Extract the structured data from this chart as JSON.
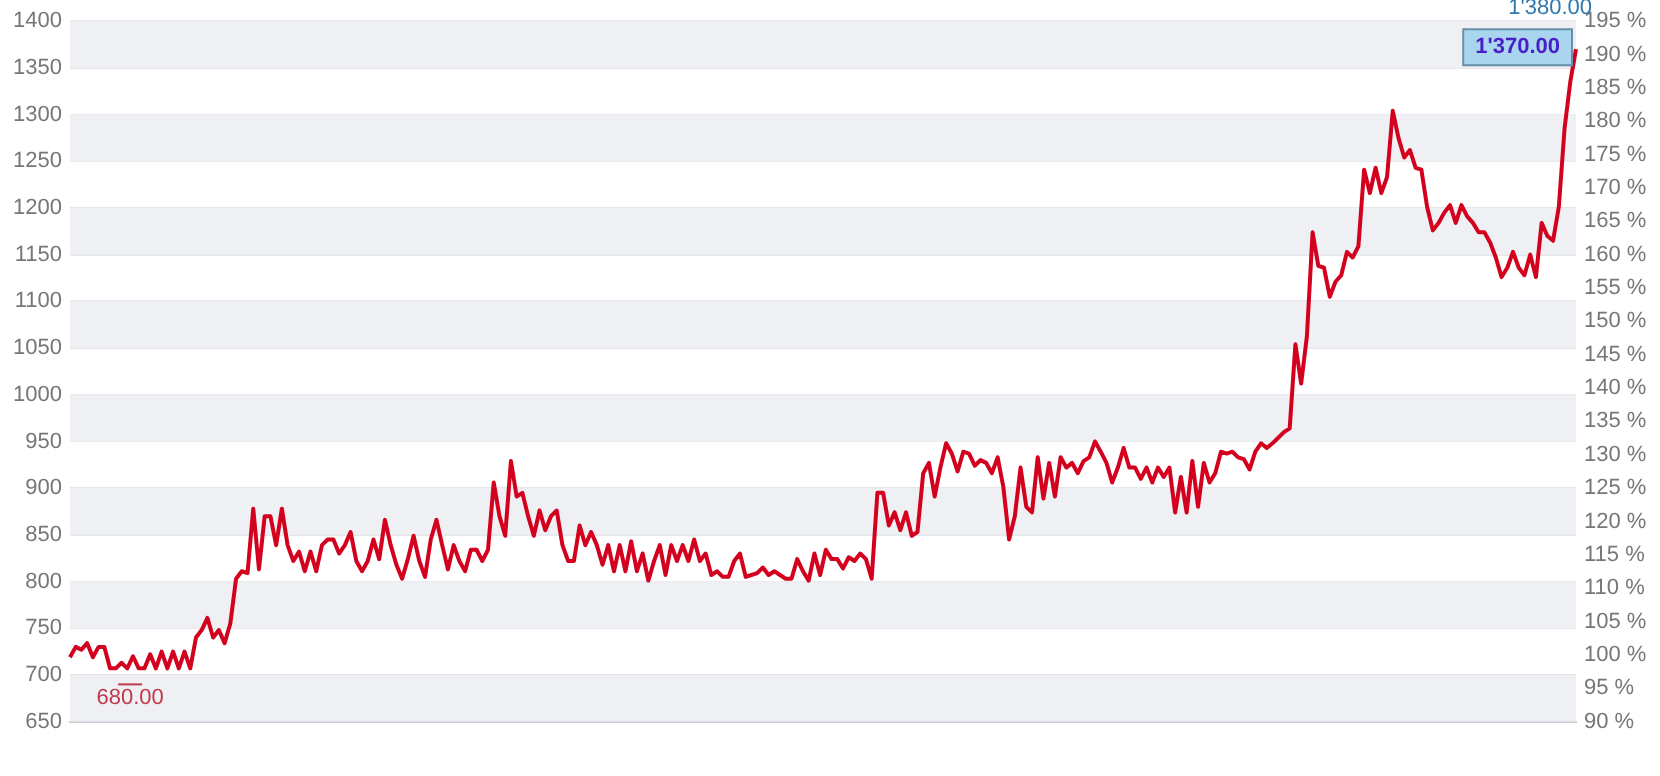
{
  "chart_data": {
    "type": "line",
    "grid": true,
    "legend": false,
    "marker": "none",
    "line_style": "solid",
    "categories": [
      null,
      null,
      null,
      null,
      null,
      null,
      null,
      null,
      null,
      null,
      null,
      null,
      null,
      null,
      null,
      null,
      null,
      null,
      null,
      null,
      null,
      null,
      null,
      null,
      null,
      null,
      null,
      null,
      null,
      null,
      null,
      null,
      null,
      null,
      null,
      null,
      null,
      null,
      null,
      null,
      null,
      null,
      null,
      null,
      null,
      null,
      null,
      null,
      null,
      null,
      null,
      null,
      null,
      null,
      null,
      null,
      null,
      null,
      null,
      null,
      null,
      null,
      null,
      null,
      null,
      null,
      null,
      null,
      null,
      null,
      null,
      null,
      null,
      null,
      null,
      null,
      null,
      null,
      null,
      null,
      null,
      null,
      null,
      null,
      null,
      null,
      null,
      null,
      null,
      null,
      null,
      null,
      null,
      null,
      null,
      null,
      null,
      null,
      null,
      null,
      null,
      null,
      null,
      null,
      null,
      null,
      null,
      null,
      null,
      null,
      null,
      null,
      null,
      null,
      null,
      null,
      null,
      null,
      null,
      null,
      null,
      null,
      null,
      null,
      null,
      null,
      null,
      null,
      null,
      null,
      null,
      null,
      null,
      null,
      null,
      null,
      null,
      null,
      null,
      null,
      null,
      null,
      null,
      null,
      null,
      null,
      null,
      null,
      null,
      null,
      null,
      null,
      null,
      null,
      null,
      null,
      null,
      null,
      null,
      null,
      null,
      null,
      null,
      null,
      null,
      null,
      null,
      null,
      null,
      null,
      null,
      null,
      null,
      null,
      null,
      null,
      null,
      null,
      null,
      null,
      null,
      null,
      null,
      null,
      null,
      null,
      null,
      null,
      null,
      null,
      null,
      null,
      null,
      null,
      null,
      null,
      null,
      null,
      null,
      null,
      null,
      null,
      null,
      null,
      null,
      null,
      null,
      null,
      null,
      null,
      null,
      null,
      null,
      null,
      null,
      null,
      null,
      null,
      null,
      null,
      null,
      null,
      null,
      null,
      null,
      null,
      null,
      null,
      null,
      null,
      null,
      null,
      null,
      null,
      null,
      null,
      null,
      null,
      null,
      null,
      null,
      null,
      null,
      null,
      null,
      null,
      null,
      null,
      null,
      null,
      null,
      null,
      null,
      null,
      null,
      null,
      null,
      null,
      null,
      null,
      null,
      null,
      null,
      null
    ],
    "series": [
      {
        "color": "#d3001e",
        "values": [
          719,
          730,
          727,
          734,
          719,
          730,
          730,
          707,
          707,
          713,
          707,
          720,
          707,
          707,
          722,
          707,
          725,
          707,
          725,
          707,
          725,
          707,
          740,
          748,
          761,
          740,
          748,
          734,
          755,
          803,
          811,
          809,
          878,
          813,
          870,
          870,
          839,
          878,
          839,
          822,
          832,
          811,
          832,
          811,
          839,
          845,
          845,
          830,
          839,
          853,
          822,
          811,
          822,
          845,
          824,
          866,
          839,
          818,
          803,
          824,
          849,
          822,
          805,
          845,
          866,
          839,
          813,
          839,
          822,
          811,
          834,
          834,
          822,
          834,
          906,
          870,
          849,
          929,
          891,
          895,
          870,
          849,
          876,
          855,
          870,
          876,
          839,
          822,
          822,
          860,
          839,
          853,
          839,
          818,
          839,
          811,
          839,
          811,
          843,
          811,
          830,
          801,
          822,
          839,
          807,
          839,
          822,
          839,
          822,
          845,
          822,
          830,
          807,
          811,
          805,
          805,
          822,
          830,
          805,
          807,
          809,
          815,
          807,
          811,
          807,
          803,
          803,
          824,
          811,
          801,
          830,
          807,
          834,
          824,
          824,
          814,
          826,
          822,
          830,
          824,
          803,
          895,
          895,
          860,
          874,
          855,
          874,
          849,
          853,
          916,
          927,
          891,
          922,
          948,
          937,
          918,
          939,
          937,
          924,
          930,
          927,
          916,
          933,
          901,
          845,
          870,
          922,
          880,
          874,
          933,
          889,
          927,
          891,
          933,
          922,
          927,
          916,
          929,
          933,
          950,
          939,
          927,
          906,
          922,
          943,
          922,
          922,
          910,
          922,
          906,
          922,
          912,
          922,
          874,
          912,
          874,
          929,
          880,
          927,
          906,
          916,
          939,
          937,
          939,
          933,
          931,
          920,
          939,
          948,
          943,
          948,
          954,
          960,
          964,
          1054,
          1012,
          1062,
          1174,
          1138,
          1136,
          1105,
          1121,
          1128,
          1153,
          1147,
          1159,
          1241,
          1216,
          1243,
          1216,
          1233,
          1304,
          1275,
          1254,
          1262,
          1243,
          1241,
          1201,
          1176,
          1184,
          1195,
          1203,
          1184,
          1203,
          1191,
          1184,
          1174,
          1174,
          1163,
          1147,
          1126,
          1136,
          1153,
          1136,
          1128,
          1150,
          1126,
          1184,
          1170,
          1165,
          1201,
          1285,
          1335,
          1370
        ]
      }
    ],
    "ylim": [
      650,
      1400
    ],
    "yticks": [
      650,
      700,
      750,
      800,
      850,
      900,
      950,
      1000,
      1050,
      1100,
      1150,
      1200,
      1250,
      1300,
      1350,
      1400
    ],
    "y2lim": [
      90,
      195
    ],
    "y2ticks": [
      {
        "value": 90,
        "label": "90 %"
      },
      {
        "value": 95,
        "label": "95 %"
      },
      {
        "value": 100,
        "label": "100 %"
      },
      {
        "value": 105,
        "label": "105 %"
      },
      {
        "value": 110,
        "label": "110 %"
      },
      {
        "value": 115,
        "label": "115 %"
      },
      {
        "value": 120,
        "label": "120 %"
      },
      {
        "value": 125,
        "label": "125 %"
      },
      {
        "value": 130,
        "label": "130 %"
      },
      {
        "value": 135,
        "label": "135 %"
      },
      {
        "value": 140,
        "label": "140 %"
      },
      {
        "value": 145,
        "label": "145 %"
      },
      {
        "value": 150,
        "label": "150 %"
      },
      {
        "value": 155,
        "label": "155 %"
      },
      {
        "value": 160,
        "label": "160 %"
      },
      {
        "value": 165,
        "label": "165 %"
      },
      {
        "value": 170,
        "label": "170 %"
      },
      {
        "value": 175,
        "label": "175 %"
      },
      {
        "value": 180,
        "label": "180 %"
      },
      {
        "value": 185,
        "label": "185 %"
      },
      {
        "value": 190,
        "label": "190 %"
      },
      {
        "value": 195,
        "label": "195 %"
      }
    ],
    "annotations": [
      "680.00",
      "1'380.00",
      "1'370.00"
    ]
  }
}
